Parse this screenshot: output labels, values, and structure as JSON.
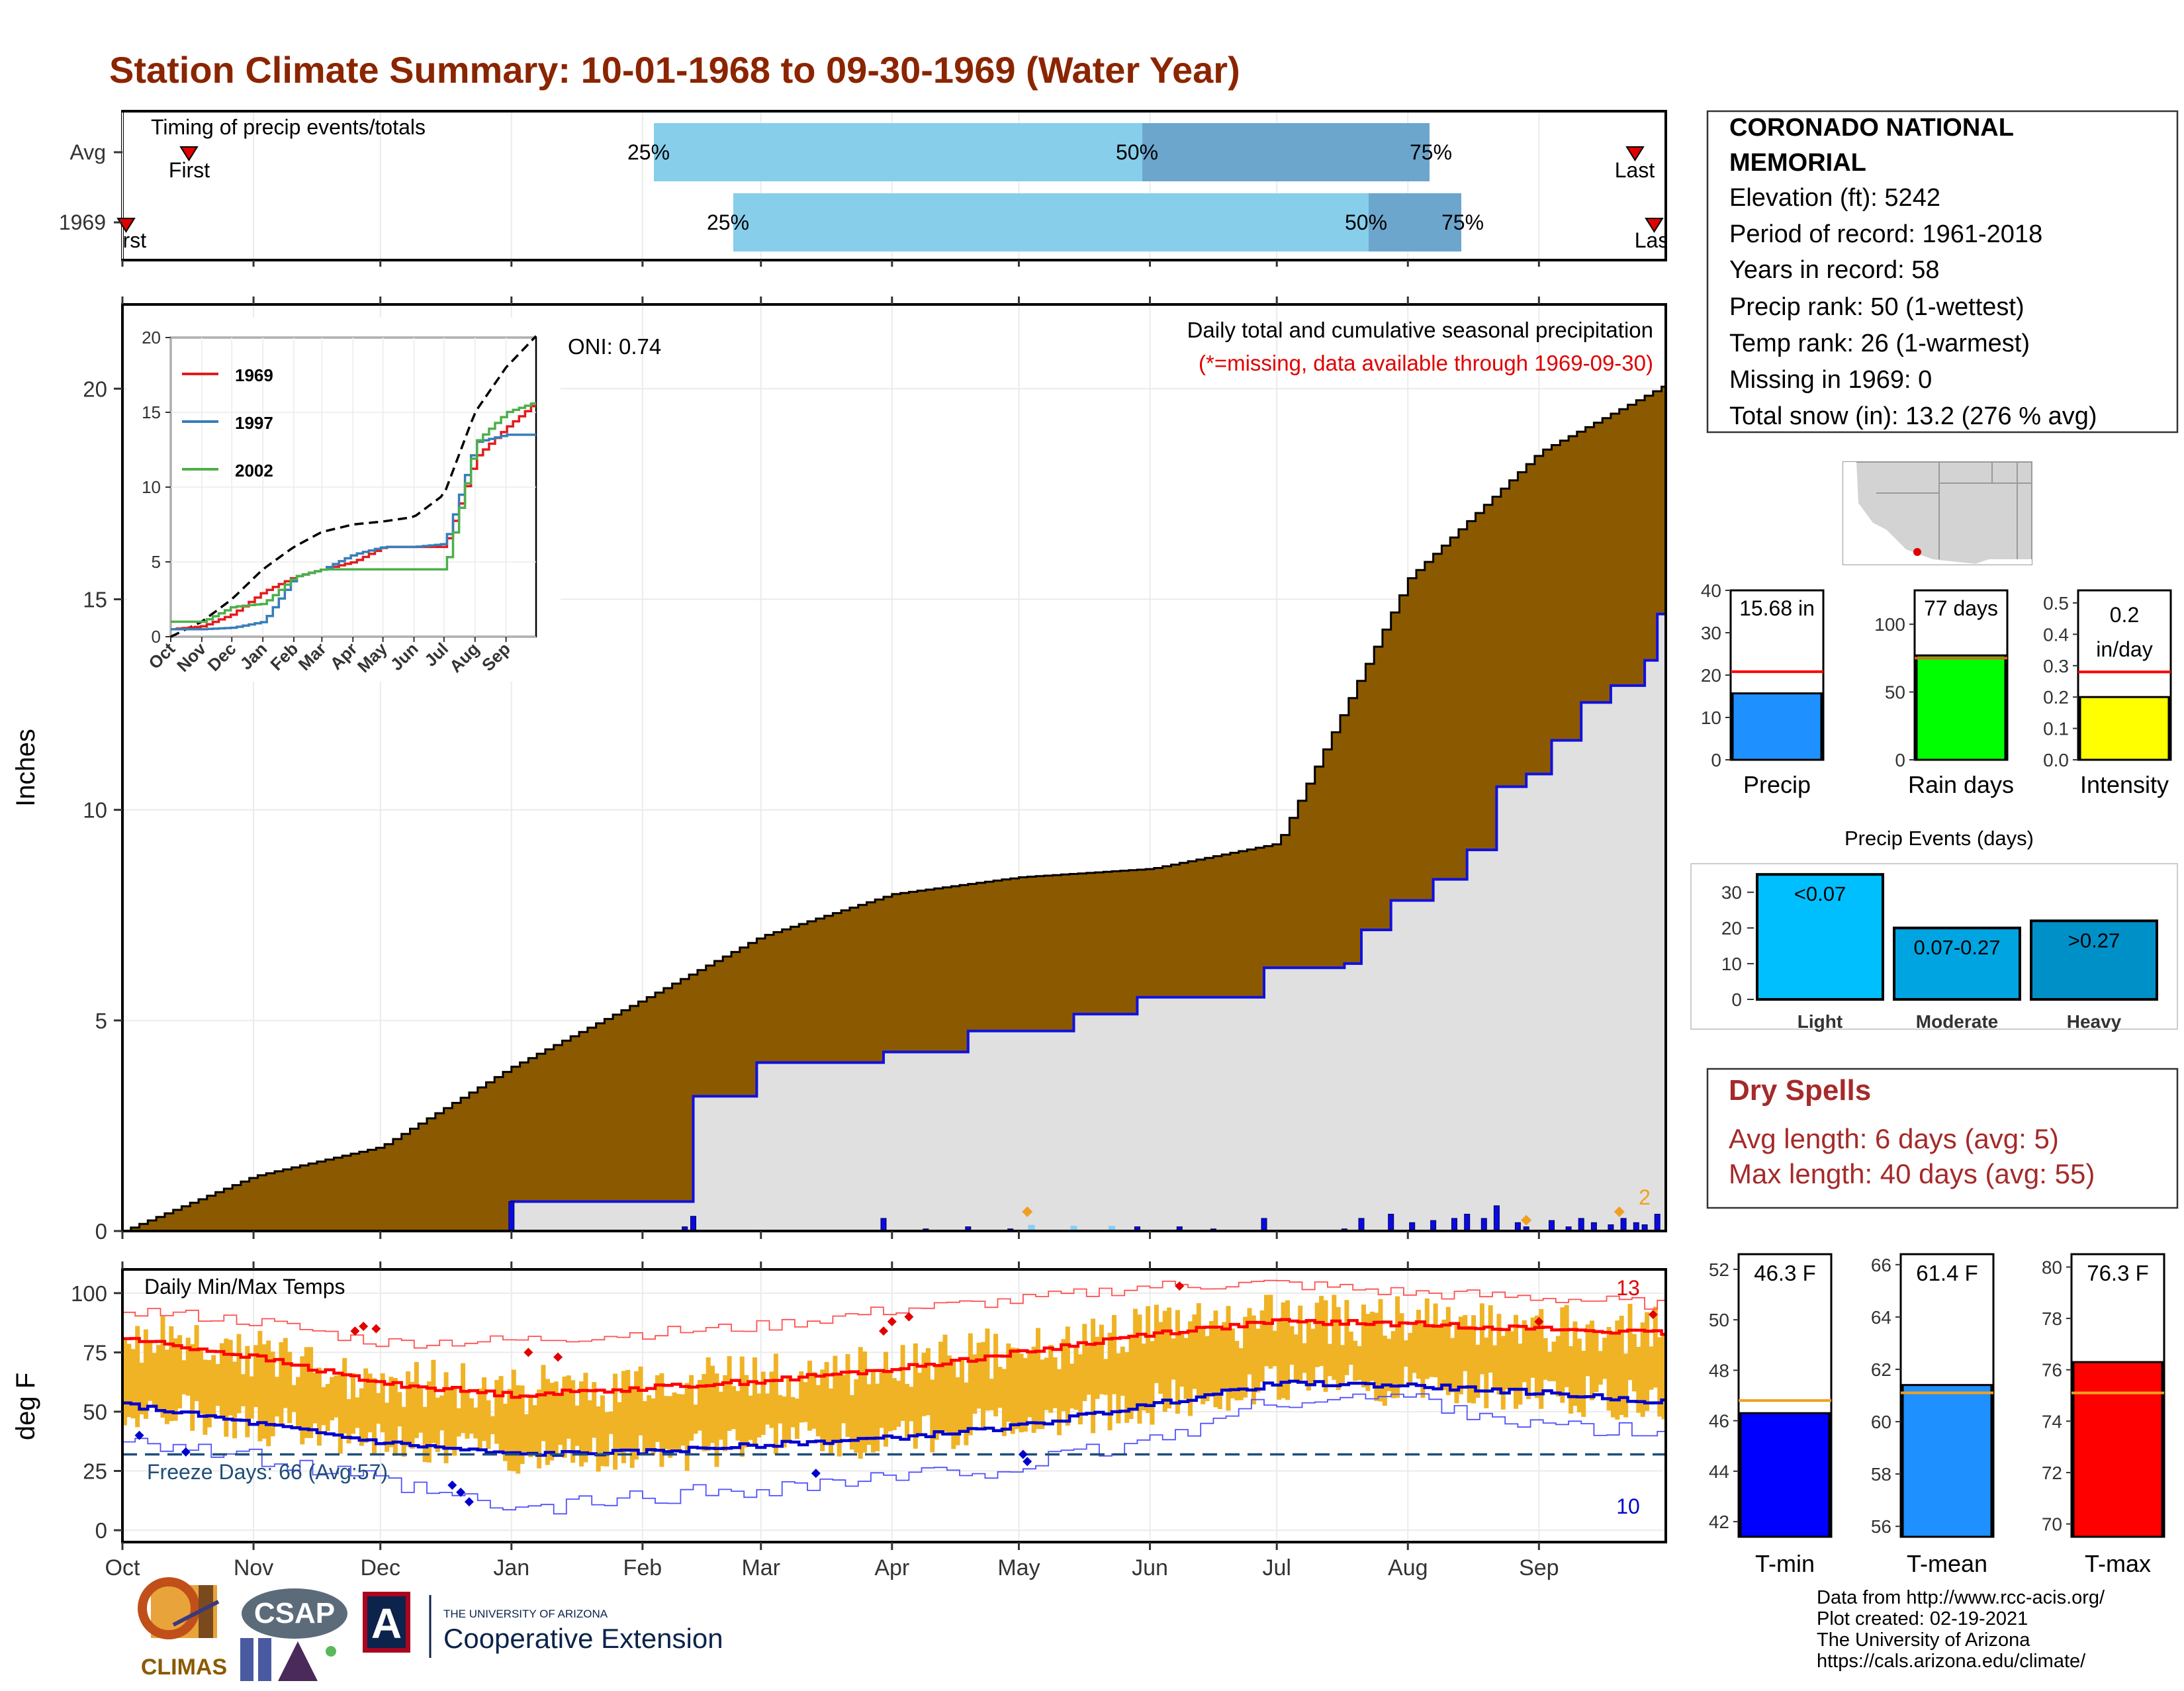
{
  "title": "Station Climate Summary: 10-01-1968 to 09-30-1969 (Water Year)",
  "months": [
    "Oct",
    "Nov",
    "Dec",
    "Jan",
    "Feb",
    "Mar",
    "Apr",
    "May",
    "Jun",
    "Jul",
    "Aug",
    "Sep"
  ],
  "timing": {
    "label": "Timing of precip events/totals",
    "rows": [
      {
        "name": "Avg",
        "first_label": "First",
        "last_label": "Last",
        "p25": "25%",
        "p50": "50%",
        "p75": "75%"
      },
      {
        "name": "1969",
        "first_label": "First",
        "last_label": "Last",
        "p25": "25%",
        "p50": "50%",
        "p75": "75%"
      }
    ]
  },
  "station": {
    "name_line1": "CORONADO NATIONAL",
    "name_line2": "MEMORIAL",
    "elevation": "Elevation (ft): 5242",
    "period": "Period of record: 1961-2018",
    "years": "Years in record: 58",
    "precip_rank": "Precip rank: 50 (1-wettest)",
    "temp_rank": "Temp rank: 26 (1-warmest)",
    "missing": "Missing in 1969: 0",
    "snow": "Total snow (in): 13.2 (276 % avg)"
  },
  "precip_panel": {
    "ylabel": "Inches",
    "oni": "ONI: 0.74",
    "caption": "Daily total and cumulative seasonal precipitation",
    "missing_note": "(*=missing, data available through 1969-09-30)",
    "corner_count": "2",
    "yticks": [
      "0",
      "5",
      "10",
      "15",
      "20"
    ]
  },
  "inset": {
    "yticks": [
      "0",
      "5",
      "10",
      "15",
      "20"
    ],
    "xticks": [
      "Oct",
      "Nov",
      "Dec",
      "Jan",
      "Feb",
      "Mar",
      "Apr",
      "May",
      "Jun",
      "Jul",
      "Aug",
      "Sep"
    ],
    "legend": [
      "1969",
      "1997",
      "2002"
    ]
  },
  "temp_panel": {
    "ylabel": "deg F",
    "label": "Daily Min/Max Temps",
    "freeze": "Freeze Days: 66 (Avg:57)",
    "hot_count": "13",
    "cold_count": "10",
    "yticks": [
      "0",
      "25",
      "50",
      "75",
      "100"
    ]
  },
  "small_bars": [
    {
      "label": "Precip",
      "value_text": "15.68 in",
      "yticks": [
        "0",
        "10",
        "20",
        "30",
        "40"
      ]
    },
    {
      "label": "Rain days",
      "value_text": "77 days",
      "yticks": [
        "0",
        "50",
        "100"
      ]
    },
    {
      "label": "Intensity",
      "value_text": "0.2 in/day",
      "yticks": [
        "0.0",
        "0.1",
        "0.2",
        "0.3",
        "0.4",
        "0.5"
      ]
    }
  ],
  "events": {
    "title": "Precip Events (days)",
    "yticks": [
      "0",
      "10",
      "20",
      "30"
    ],
    "bars": [
      {
        "label": "Light",
        "tag": "<0.07"
      },
      {
        "label": "Moderate",
        "tag": "0.07-0.27"
      },
      {
        "label": "Heavy",
        "tag": ">0.27"
      }
    ]
  },
  "dry_spells": {
    "title": "Dry Spells",
    "avg": "Avg length: 6 days (avg: 5)",
    "max": "Max length: 40 days (avg: 55)"
  },
  "temp_bars": [
    {
      "label": "T-min",
      "value_text": "46.3 F",
      "yticks": [
        "42",
        "44",
        "46",
        "48",
        "50",
        "52"
      ]
    },
    {
      "label": "T-mean",
      "value_text": "61.4 F",
      "yticks": [
        "56",
        "58",
        "60",
        "62",
        "64",
        "66"
      ]
    },
    {
      "label": "T-max",
      "value_text": "76.3 F",
      "yticks": [
        "70",
        "72",
        "74",
        "76",
        "78",
        "80"
      ]
    }
  ],
  "credits": {
    "line1": "Data from http://www.rcc-acis.org/",
    "line2": "Plot created: 02-19-2021",
    "line3": "The University of Arizona",
    "line4": "https://cals.arizona.edu/climate/"
  },
  "logos": {
    "climas": "CLIMAS",
    "csap": "CSAP",
    "ua_small": "THE UNIVERSITY OF ARIZONA",
    "ua_big": "Cooperative Extension",
    "ua_letter": "A"
  },
  "colors": {
    "title": "#8B2500",
    "avg_fill": "#8B5A00",
    "obs_fill": "#E0E0E0",
    "obs_line": "#1010E0",
    "bar25": "#87CEEB",
    "bar50": "#6CA6CD",
    "temp_bar": "#EFB325",
    "tmax_avg": "#FF0000",
    "tmin_avg": "#0000CD"
  },
  "chart_data": [
    {
      "type": "area",
      "title": "Daily total and cumulative seasonal precipitation",
      "ylabel": "Inches",
      "ylim": [
        0,
        22
      ],
      "x": [
        "Oct",
        "Nov",
        "Dec",
        "Jan",
        "Feb",
        "Mar",
        "Apr",
        "May",
        "Jun",
        "Jul",
        "Aug",
        "Sep",
        "Oct"
      ],
      "series": [
        {
          "name": "avg_cumulative",
          "values": [
            0,
            1.3,
            2.0,
            3.9,
            5.5,
            7.0,
            8.0,
            8.4,
            8.6,
            9.2,
            15.5,
            18.5,
            20.1
          ]
        },
        {
          "name": "1969_cumulative",
          "values": [
            0,
            0,
            0.7,
            0.7,
            3.2,
            4.0,
            4.9,
            5.6,
            5.7,
            5.8,
            11.8,
            13.7,
            15.68
          ]
        }
      ]
    },
    {
      "type": "line",
      "title": "Inset cumulative precipitation",
      "ylim": [
        0,
        20
      ],
      "x": [
        "Oct",
        "Nov",
        "Dec",
        "Jan",
        "Feb",
        "Mar",
        "Apr",
        "May",
        "Jun",
        "Jul",
        "Aug",
        "Sep",
        "Oct"
      ],
      "series": [
        {
          "name": "avg",
          "values": [
            0,
            1,
            2.5,
            4.5,
            6,
            7,
            7.5,
            7.7,
            8,
            9.5,
            15,
            18,
            20.1
          ]
        },
        {
          "name": "1969",
          "values": [
            0.5,
            0.7,
            1.5,
            3,
            4,
            4.5,
            5,
            6,
            6,
            6,
            12,
            14,
            15.7
          ]
        },
        {
          "name": "1997",
          "values": [
            0.5,
            0.5,
            0.6,
            1,
            4,
            4.5,
            5.5,
            6,
            6,
            6.2,
            13,
            13.5,
            13.5
          ]
        },
        {
          "name": "2002",
          "values": [
            1,
            1,
            2,
            2.2,
            4,
            4.5,
            4.5,
            4.5,
            4.5,
            4.5,
            13,
            15,
            15.7
          ]
        }
      ]
    },
    {
      "type": "line",
      "title": "Daily Min/Max Temps",
      "ylabel": "deg F",
      "ylim": [
        0,
        110
      ],
      "x": [
        "Oct",
        "Nov",
        "Dec",
        "Jan",
        "Feb",
        "Mar",
        "Apr",
        "May",
        "Jun",
        "Jul",
        "Aug",
        "Sep",
        "Oct"
      ],
      "series": [
        {
          "name": "avg_tmax",
          "values": [
            81,
            73,
            62,
            57,
            60,
            63,
            68,
            75,
            83,
            88,
            87,
            85,
            83
          ]
        },
        {
          "name": "avg_tmin",
          "values": [
            53,
            45,
            37,
            32,
            33,
            36,
            39,
            44,
            53,
            62,
            61,
            58,
            54
          ]
        },
        {
          "name": "record_max",
          "values": [
            93,
            88,
            79,
            80,
            83,
            86,
            93,
            97,
            103,
            104,
            100,
            98,
            95
          ]
        },
        {
          "name": "record_min",
          "values": [
            40,
            30,
            20,
            8,
            14,
            18,
            22,
            27,
            38,
            55,
            56,
            44,
            40
          ]
        }
      ]
    },
    {
      "type": "bar",
      "title": "Precip",
      "categories": [
        "Precip",
        "Rain days",
        "Intensity"
      ],
      "values": [
        15.68,
        77,
        0.2
      ],
      "averages": [
        20.8,
        75,
        0.28
      ]
    },
    {
      "type": "bar",
      "title": "Precip Events (days)",
      "categories": [
        "Light",
        "Moderate",
        "Heavy"
      ],
      "values": [
        35,
        20,
        22
      ],
      "ylim": [
        0,
        36
      ]
    },
    {
      "type": "bar",
      "title": "Temperatures",
      "categories": [
        "T-min",
        "T-mean",
        "T-max"
      ],
      "values": [
        46.3,
        61.4,
        76.3
      ],
      "averages": [
        46.8,
        61.1,
        75.1
      ]
    }
  ]
}
